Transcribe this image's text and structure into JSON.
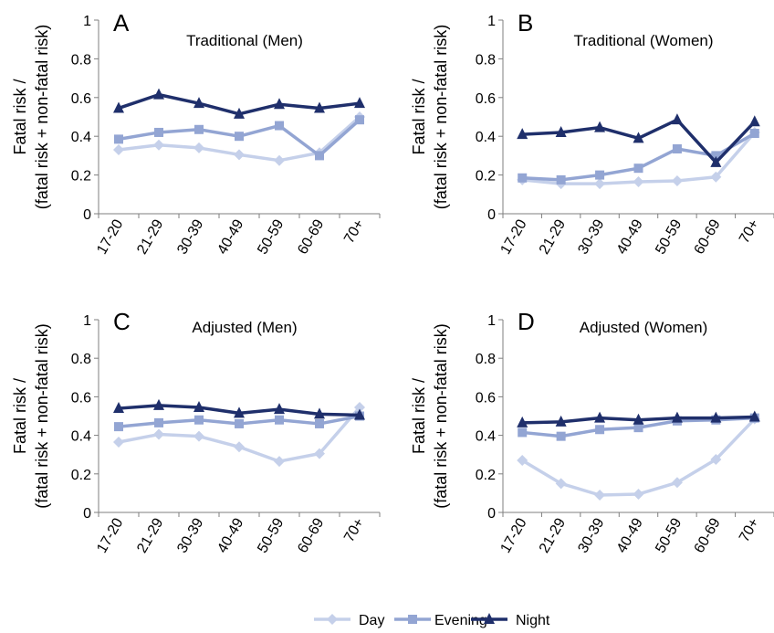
{
  "chart_data": [
    {
      "type": "line",
      "panel_letter": "A",
      "title": "Traditional (Men)",
      "ylabel_line1": "Fatal risk /",
      "ylabel_line2": "(fatal risk + non-fatal risk)",
      "categories": [
        "17-20",
        "21-29",
        "30-39",
        "40-49",
        "50-59",
        "60-69",
        "70+"
      ],
      "ylim": [
        0,
        1
      ],
      "yticks": [
        "0",
        "0.2",
        "0.4",
        "0.6",
        "0.8",
        "1"
      ],
      "series": [
        {
          "name": "Day",
          "values": [
            0.33,
            0.355,
            0.34,
            0.305,
            0.275,
            0.315,
            0.5
          ]
        },
        {
          "name": "Evening",
          "values": [
            0.385,
            0.42,
            0.435,
            0.4,
            0.455,
            0.3,
            0.485
          ]
        },
        {
          "name": "Night",
          "values": [
            0.545,
            0.615,
            0.57,
            0.515,
            0.565,
            0.545,
            0.57
          ]
        }
      ]
    },
    {
      "type": "line",
      "panel_letter": "B",
      "title": "Traditional (Women)",
      "ylabel_line1": "Fatal risk /",
      "ylabel_line2": "(fatal risk + non-fatal risk)",
      "categories": [
        "17-20",
        "21-29",
        "30-39",
        "40-49",
        "50-59",
        "60-69",
        "70+"
      ],
      "ylim": [
        0,
        1
      ],
      "yticks": [
        "0",
        "0.2",
        "0.4",
        "0.6",
        "0.8",
        "1"
      ],
      "series": [
        {
          "name": "Day",
          "values": [
            0.175,
            0.155,
            0.155,
            0.165,
            0.17,
            0.19,
            0.42
          ]
        },
        {
          "name": "Evening",
          "values": [
            0.185,
            0.175,
            0.2,
            0.235,
            0.335,
            0.3,
            0.415
          ]
        },
        {
          "name": "Night",
          "values": [
            0.41,
            0.42,
            0.445,
            0.39,
            0.485,
            0.265,
            0.475
          ]
        }
      ]
    },
    {
      "type": "line",
      "panel_letter": "C",
      "title": "Adjusted (Men)",
      "ylabel_line1": "Fatal risk /",
      "ylabel_line2": "(fatal risk + non-fatal risk)",
      "categories": [
        "17-20",
        "21-29",
        "30-39",
        "40-49",
        "50-59",
        "60-69",
        "70+"
      ],
      "ylim": [
        0,
        1
      ],
      "yticks": [
        "0",
        "0.2",
        "0.4",
        "0.6",
        "0.8",
        "1"
      ],
      "series": [
        {
          "name": "Day",
          "values": [
            0.365,
            0.405,
            0.395,
            0.34,
            0.265,
            0.305,
            0.545
          ]
        },
        {
          "name": "Evening",
          "values": [
            0.445,
            0.465,
            0.48,
            0.46,
            0.48,
            0.46,
            0.5
          ]
        },
        {
          "name": "Night",
          "values": [
            0.54,
            0.555,
            0.545,
            0.515,
            0.535,
            0.51,
            0.505
          ]
        }
      ]
    },
    {
      "type": "line",
      "panel_letter": "D",
      "title": "Adjusted (Women)",
      "ylabel_line1": "Fatal risk /",
      "ylabel_line2": "(fatal risk + non-fatal risk)",
      "categories": [
        "17-20",
        "21-29",
        "30-39",
        "40-49",
        "50-59",
        "60-69",
        "70+"
      ],
      "ylim": [
        0,
        1
      ],
      "yticks": [
        "0",
        "0.2",
        "0.4",
        "0.6",
        "0.8",
        "1"
      ],
      "series": [
        {
          "name": "Day",
          "values": [
            0.27,
            0.15,
            0.09,
            0.095,
            0.155,
            0.275,
            0.485
          ]
        },
        {
          "name": "Evening",
          "values": [
            0.415,
            0.395,
            0.43,
            0.44,
            0.475,
            0.48,
            0.49
          ]
        },
        {
          "name": "Night",
          "values": [
            0.465,
            0.47,
            0.49,
            0.48,
            0.49,
            0.49,
            0.495
          ]
        }
      ]
    }
  ],
  "legend": {
    "position": "bottom-center",
    "items": [
      {
        "name": "Day",
        "color": "#c5d0ea",
        "marker": "diamond"
      },
      {
        "name": "Evening",
        "color": "#93a5d3",
        "marker": "square"
      },
      {
        "name": "Night",
        "color": "#1f2f6b",
        "marker": "triangle"
      }
    ]
  },
  "colors": {
    "day": "#c5d0ea",
    "evening": "#93a5d3",
    "night": "#1f2f6b",
    "axis": "#7f7f7f"
  }
}
